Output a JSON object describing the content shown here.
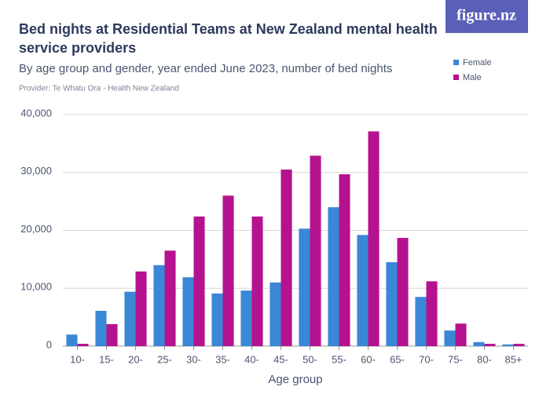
{
  "logo": "figure.nz",
  "chart_data": {
    "type": "bar",
    "title": "Bed nights at Residential Teams at New Zealand mental health service providers",
    "subtitle": "By age group and gender, year ended June 2023, number of bed nights",
    "provider": "Provider: Te Whatu Ora - Health New Zealand",
    "x_label": "Age group",
    "categories": [
      "10-",
      "15-",
      "20-",
      "25-",
      "30-",
      "35-",
      "40-",
      "45-",
      "50-",
      "55-",
      "60-",
      "65-",
      "70-",
      "75-",
      "80-",
      "85+"
    ],
    "series": [
      {
        "name": "Female",
        "color": "#3a87d6",
        "values": [
          2000,
          6100,
          9400,
          14000,
          11900,
          9100,
          9600,
          11000,
          20300,
          24000,
          19200,
          14500,
          8500,
          2700,
          700,
          300
        ]
      },
      {
        "name": "Male",
        "color": "#b5128f",
        "values": [
          400,
          3800,
          12900,
          16500,
          22400,
          26000,
          22400,
          30500,
          32900,
          29700,
          37100,
          18700,
          11200,
          3900,
          400,
          400
        ]
      }
    ],
    "ylim": [
      0,
      40000
    ],
    "yticks": [
      0,
      {
        "value": 10000,
        "label": "10,000"
      },
      {
        "value": 20000,
        "label": "20,000"
      },
      {
        "value": 30000,
        "label": "30,000"
      },
      {
        "value": 40000,
        "label": "40,000"
      }
    ],
    "grid": true,
    "legend": "top-right"
  }
}
